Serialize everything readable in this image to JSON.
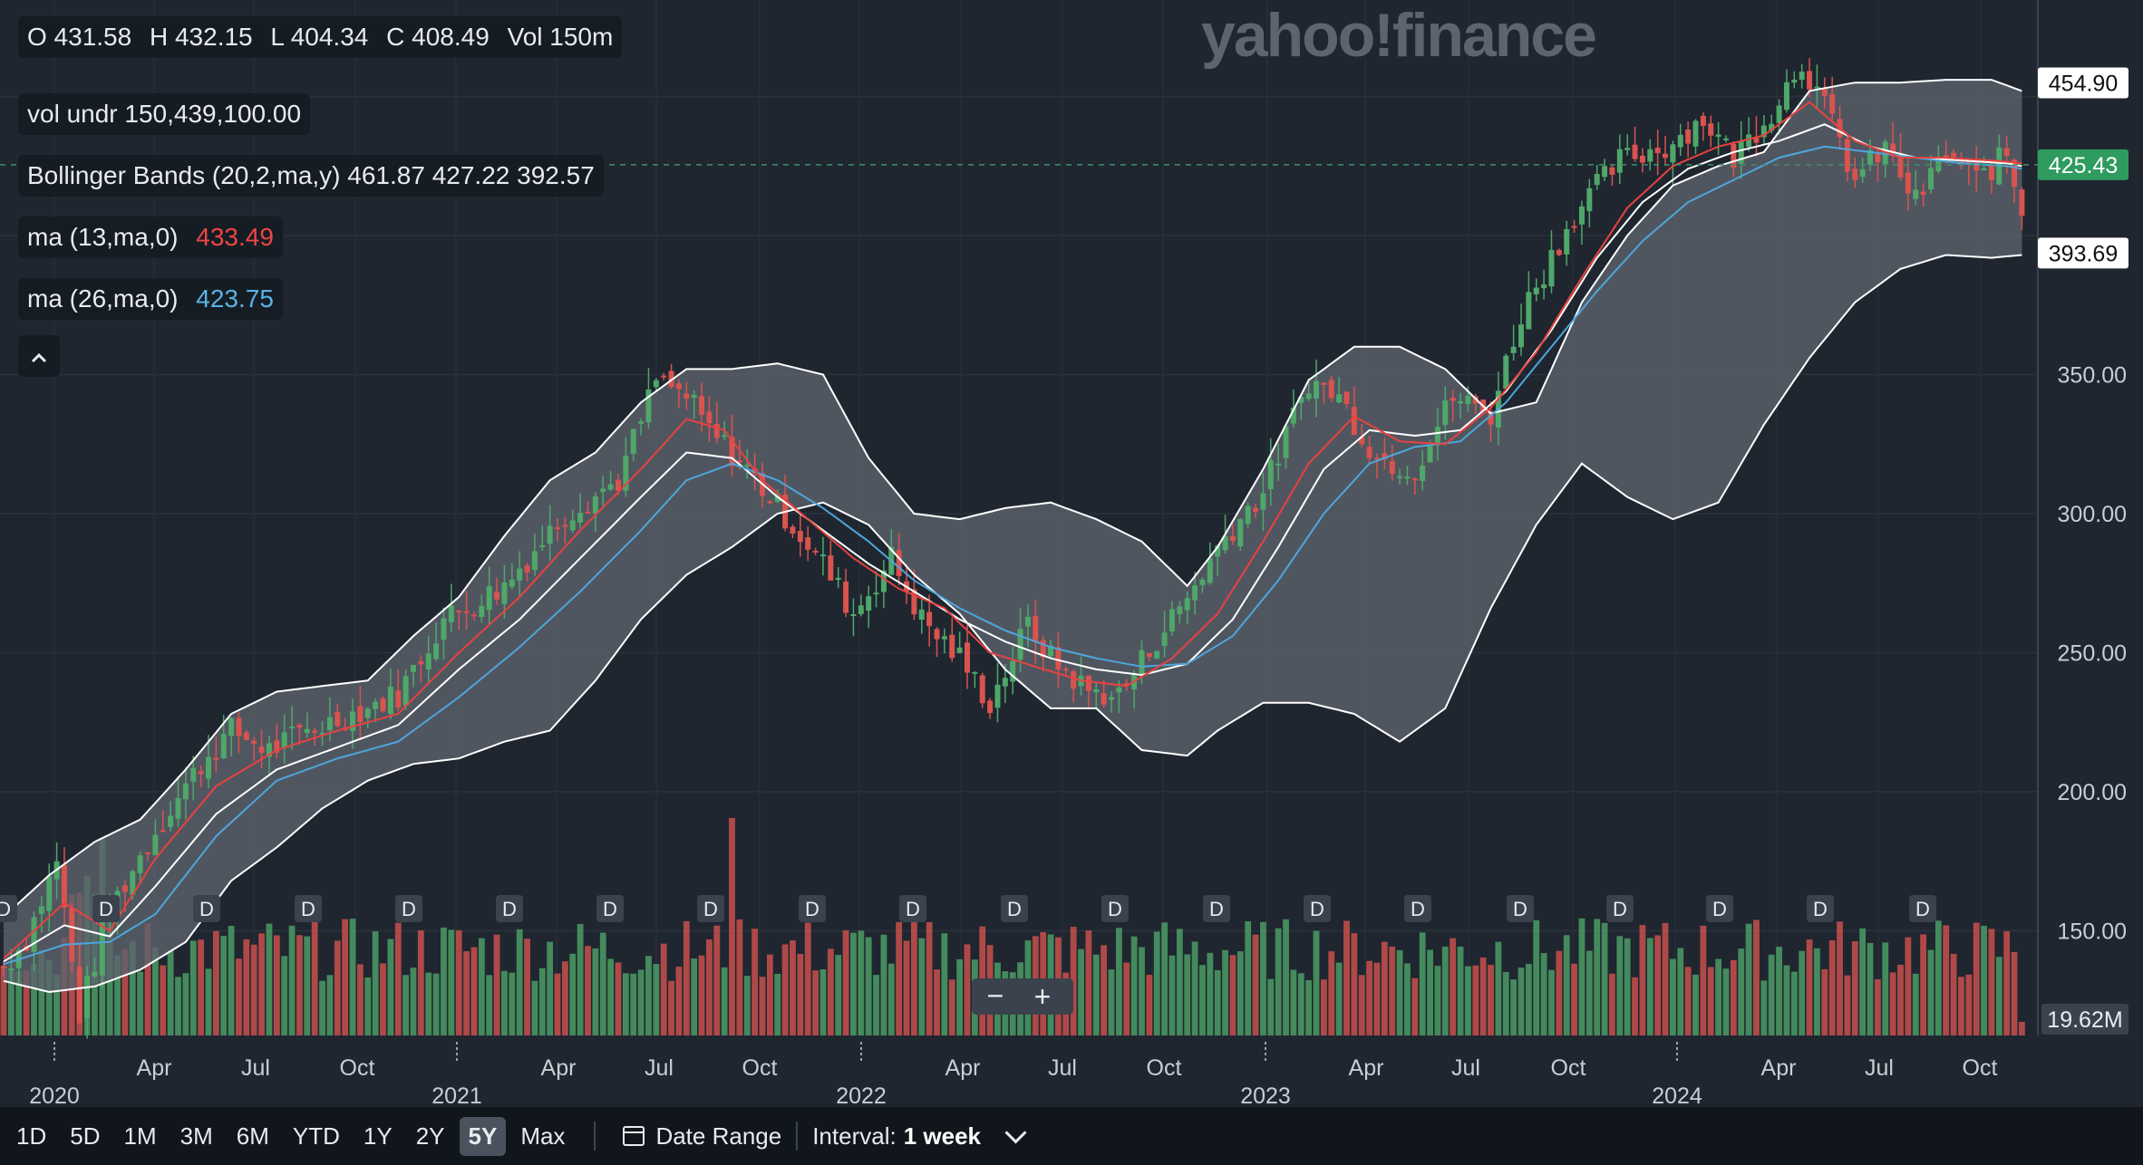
{
  "brand": {
    "logo_text": "yahoo!finance"
  },
  "ohlc": {
    "o": "O 431.58",
    "h": "H 432.15",
    "l": "L 404.34",
    "c": "C 408.49",
    "vol": "Vol 150m"
  },
  "indicators": {
    "vol_undr": "vol undr  150,439,100.00",
    "bollinger": "Bollinger Bands (20,2,ma,y)  461.87 427.22 392.57",
    "ma13_label": "ma (13,ma,0)",
    "ma13_value": "433.49",
    "ma26_label": "ma (26,ma,0)",
    "ma26_value": "423.75"
  },
  "collapse_icon": "chevron-up-icon",
  "zoom": {
    "minus": "−",
    "plus": "+"
  },
  "toolbar": {
    "ranges": [
      "1D",
      "5D",
      "1M",
      "3M",
      "6M",
      "YTD",
      "1Y",
      "2Y",
      "5Y",
      "Max"
    ],
    "active_range": "5Y",
    "date_range": "Date Range",
    "interval_label": "Interval:",
    "interval_value": "1 week"
  },
  "colors": {
    "up": "#4fa769",
    "down": "#d9534f",
    "ma13": "#e8423f",
    "ma26": "#4ea6dc",
    "bollinger": "#ffffff",
    "band_fill": "#5c636d",
    "background": "#1f2630"
  },
  "chart_data": {
    "type": "candlestick",
    "y_ticks": [
      "200.00",
      "250.00",
      "300.00",
      "350.00",
      "150.00"
    ],
    "ylim": [
      125,
      485
    ],
    "price_labels": [
      {
        "text": "454.90",
        "value": 454.9,
        "style": "white"
      },
      {
        "text": "425.43",
        "value": 425.43,
        "style": "green"
      },
      {
        "text": "393.69",
        "value": 393.69,
        "style": "white"
      }
    ],
    "volume_label": "19.62M",
    "x_month_labels": [
      "Apr",
      "Jul",
      "Oct",
      "Apr",
      "Jul",
      "Oct",
      "Apr",
      "Jul",
      "Oct",
      "Apr",
      "Jul",
      "Oct",
      "Apr",
      "Jul",
      "Oct"
    ],
    "x_year_labels": [
      "2020",
      "2021",
      "2022",
      "2023",
      "2024"
    ],
    "dividend_marker": "D",
    "close_anchors": [
      [
        0,
        137
      ],
      [
        3,
        147
      ],
      [
        7,
        175
      ],
      [
        10,
        120
      ],
      [
        14,
        158
      ],
      [
        20,
        186
      ],
      [
        26,
        210
      ],
      [
        30,
        222
      ],
      [
        35,
        215
      ],
      [
        40,
        222
      ],
      [
        46,
        228
      ],
      [
        52,
        235
      ],
      [
        58,
        262
      ],
      [
        66,
        274
      ],
      [
        74,
        300
      ],
      [
        81,
        312
      ],
      [
        86,
        348
      ],
      [
        90,
        342
      ],
      [
        93,
        330
      ],
      [
        98,
        316
      ],
      [
        104,
        296
      ],
      [
        108,
        282
      ],
      [
        112,
        264
      ],
      [
        117,
        284
      ],
      [
        121,
        262
      ],
      [
        126,
        248
      ],
      [
        130,
        232
      ],
      [
        135,
        260
      ],
      [
        138,
        248
      ],
      [
        143,
        236
      ],
      [
        147,
        235
      ],
      [
        152,
        255
      ],
      [
        156,
        270
      ],
      [
        161,
        292
      ],
      [
        166,
        308
      ],
      [
        172,
        348
      ],
      [
        176,
        342
      ],
      [
        181,
        320
      ],
      [
        186,
        316
      ],
      [
        191,
        342
      ],
      [
        196,
        336
      ],
      [
        200,
        372
      ],
      [
        207,
        408
      ],
      [
        213,
        427
      ],
      [
        219,
        432
      ],
      [
        224,
        442
      ],
      [
        228,
        428
      ],
      [
        233,
        445
      ],
      [
        237,
        463
      ],
      [
        241,
        440
      ],
      [
        244,
        420
      ],
      [
        248,
        432
      ],
      [
        252,
        412
      ],
      [
        256,
        430
      ],
      [
        260,
        420
      ],
      [
        264,
        429
      ],
      [
        266,
        408.49
      ]
    ],
    "bollinger_upper": [
      [
        0,
        155
      ],
      [
        6,
        170
      ],
      [
        12,
        182
      ],
      [
        18,
        190
      ],
      [
        24,
        208
      ],
      [
        30,
        228
      ],
      [
        36,
        236
      ],
      [
        42,
        238
      ],
      [
        48,
        240
      ],
      [
        54,
        256
      ],
      [
        60,
        270
      ],
      [
        66,
        292
      ],
      [
        72,
        312
      ],
      [
        78,
        322
      ],
      [
        84,
        340
      ],
      [
        90,
        352
      ],
      [
        96,
        352
      ],
      [
        102,
        354
      ],
      [
        108,
        350
      ],
      [
        114,
        320
      ],
      [
        120,
        300
      ],
      [
        126,
        298
      ],
      [
        132,
        302
      ],
      [
        138,
        304
      ],
      [
        144,
        298
      ],
      [
        150,
        290
      ],
      [
        156,
        274
      ],
      [
        160,
        288
      ],
      [
        166,
        316
      ],
      [
        172,
        348
      ],
      [
        178,
        360
      ],
      [
        184,
        360
      ],
      [
        190,
        352
      ],
      [
        196,
        336
      ],
      [
        202,
        340
      ],
      [
        208,
        376
      ],
      [
        214,
        400
      ],
      [
        220,
        418
      ],
      [
        226,
        425
      ],
      [
        232,
        430
      ],
      [
        238,
        452
      ],
      [
        244,
        455
      ],
      [
        250,
        455
      ],
      [
        256,
        456
      ],
      [
        262,
        456
      ],
      [
        266,
        452
      ]
    ],
    "bollinger_lower": [
      [
        0,
        132
      ],
      [
        6,
        128
      ],
      [
        12,
        130
      ],
      [
        18,
        136
      ],
      [
        24,
        146
      ],
      [
        30,
        168
      ],
      [
        36,
        180
      ],
      [
        42,
        194
      ],
      [
        48,
        204
      ],
      [
        54,
        210
      ],
      [
        60,
        212
      ],
      [
        66,
        218
      ],
      [
        72,
        222
      ],
      [
        78,
        240
      ],
      [
        84,
        262
      ],
      [
        90,
        278
      ],
      [
        96,
        288
      ],
      [
        102,
        300
      ],
      [
        108,
        304
      ],
      [
        114,
        296
      ],
      [
        120,
        278
      ],
      [
        126,
        264
      ],
      [
        132,
        244
      ],
      [
        138,
        230
      ],
      [
        144,
        230
      ],
      [
        150,
        215
      ],
      [
        156,
        213
      ],
      [
        160,
        222
      ],
      [
        166,
        232
      ],
      [
        172,
        232
      ],
      [
        178,
        228
      ],
      [
        184,
        218
      ],
      [
        190,
        230
      ],
      [
        196,
        266
      ],
      [
        202,
        296
      ],
      [
        208,
        318
      ],
      [
        214,
        306
      ],
      [
        220,
        298
      ],
      [
        226,
        304
      ],
      [
        232,
        332
      ],
      [
        238,
        356
      ],
      [
        244,
        376
      ],
      [
        250,
        388
      ],
      [
        256,
        393
      ],
      [
        262,
        392
      ],
      [
        266,
        393
      ]
    ],
    "ma13": [
      [
        0,
        140
      ],
      [
        8,
        160
      ],
      [
        14,
        150
      ],
      [
        20,
        176
      ],
      [
        28,
        202
      ],
      [
        36,
        215
      ],
      [
        44,
        222
      ],
      [
        52,
        228
      ],
      [
        60,
        250
      ],
      [
        68,
        270
      ],
      [
        76,
        294
      ],
      [
        84,
        316
      ],
      [
        90,
        334
      ],
      [
        95,
        330
      ],
      [
        100,
        312
      ],
      [
        106,
        298
      ],
      [
        112,
        284
      ],
      [
        118,
        273
      ],
      [
        124,
        266
      ],
      [
        130,
        250
      ],
      [
        136,
        245
      ],
      [
        142,
        240
      ],
      [
        148,
        238
      ],
      [
        154,
        248
      ],
      [
        160,
        264
      ],
      [
        166,
        290
      ],
      [
        172,
        318
      ],
      [
        178,
        335
      ],
      [
        184,
        326
      ],
      [
        190,
        325
      ],
      [
        196,
        338
      ],
      [
        202,
        358
      ],
      [
        208,
        385
      ],
      [
        214,
        410
      ],
      [
        220,
        425
      ],
      [
        226,
        432
      ],
      [
        232,
        436
      ],
      [
        238,
        448
      ],
      [
        244,
        434
      ],
      [
        250,
        428
      ],
      [
        256,
        428
      ],
      [
        262,
        427
      ],
      [
        266,
        426
      ]
    ],
    "ma26": [
      [
        0,
        138
      ],
      [
        8,
        145
      ],
      [
        14,
        146
      ],
      [
        20,
        156
      ],
      [
        28,
        184
      ],
      [
        36,
        204
      ],
      [
        44,
        212
      ],
      [
        52,
        218
      ],
      [
        60,
        234
      ],
      [
        68,
        252
      ],
      [
        76,
        272
      ],
      [
        84,
        294
      ],
      [
        90,
        312
      ],
      [
        96,
        318
      ],
      [
        102,
        312
      ],
      [
        108,
        302
      ],
      [
        114,
        290
      ],
      [
        120,
        276
      ],
      [
        126,
        266
      ],
      [
        132,
        258
      ],
      [
        138,
        252
      ],
      [
        144,
        248
      ],
      [
        150,
        245
      ],
      [
        156,
        246
      ],
      [
        162,
        256
      ],
      [
        168,
        276
      ],
      [
        174,
        300
      ],
      [
        180,
        318
      ],
      [
        186,
        324
      ],
      [
        192,
        326
      ],
      [
        198,
        340
      ],
      [
        204,
        360
      ],
      [
        210,
        380
      ],
      [
        216,
        398
      ],
      [
        222,
        412
      ],
      [
        228,
        420
      ],
      [
        234,
        428
      ],
      [
        240,
        432
      ],
      [
        246,
        430
      ],
      [
        252,
        428
      ],
      [
        258,
        426
      ],
      [
        264,
        425
      ],
      [
        266,
        424
      ]
    ],
    "ma20": [
      [
        0,
        139
      ],
      [
        8,
        152
      ],
      [
        14,
        148
      ],
      [
        20,
        166
      ],
      [
        28,
        192
      ],
      [
        36,
        208
      ],
      [
        44,
        216
      ],
      [
        52,
        224
      ],
      [
        60,
        244
      ],
      [
        68,
        262
      ],
      [
        76,
        284
      ],
      [
        84,
        306
      ],
      [
        90,
        322
      ],
      [
        96,
        320
      ],
      [
        102,
        306
      ],
      [
        108,
        294
      ],
      [
        114,
        282
      ],
      [
        120,
        272
      ],
      [
        126,
        262
      ],
      [
        132,
        254
      ],
      [
        138,
        248
      ],
      [
        144,
        244
      ],
      [
        150,
        242
      ],
      [
        156,
        246
      ],
      [
        162,
        262
      ],
      [
        168,
        288
      ],
      [
        174,
        316
      ],
      [
        180,
        330
      ],
      [
        186,
        328
      ],
      [
        192,
        330
      ],
      [
        198,
        344
      ],
      [
        204,
        366
      ],
      [
        210,
        392
      ],
      [
        216,
        412
      ],
      [
        222,
        424
      ],
      [
        228,
        430
      ],
      [
        234,
        434
      ],
      [
        240,
        440
      ],
      [
        246,
        432
      ],
      [
        252,
        428
      ],
      [
        258,
        427
      ],
      [
        264,
        426
      ],
      [
        266,
        425
      ]
    ]
  }
}
